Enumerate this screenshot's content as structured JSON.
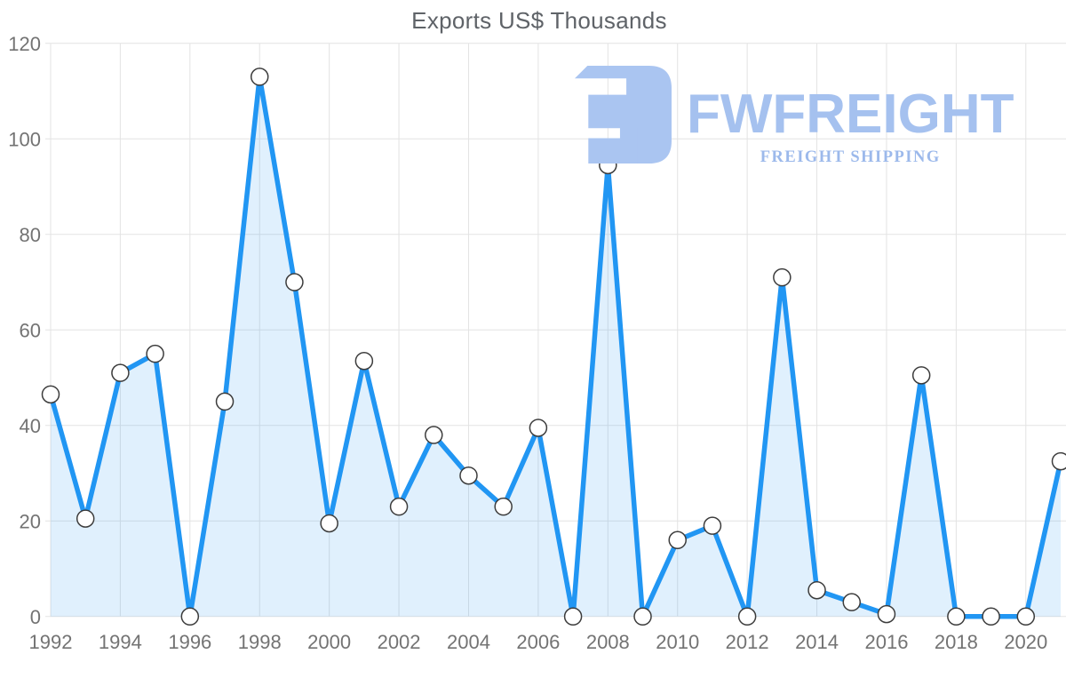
{
  "title": "Exports US$ Thousands",
  "logo": {
    "name": "FWFREIGHT",
    "tagline": "FREIGHT SHIPPING",
    "mark_color": "#aac5f1",
    "name_color": "#a5c1ef",
    "tagline_color": "#9cb9eb"
  },
  "chart_data": {
    "type": "area",
    "title": "Exports US$ Thousands",
    "x": [
      1992,
      1993,
      1994,
      1995,
      1996,
      1997,
      1998,
      1999,
      2000,
      2001,
      2002,
      2003,
      2004,
      2005,
      2006,
      2007,
      2008,
      2009,
      2010,
      2011,
      2012,
      2013,
      2014,
      2015,
      2016,
      2017,
      2018,
      2019,
      2020,
      2021
    ],
    "values": [
      46.5,
      20.5,
      51,
      55,
      0,
      45,
      113,
      70,
      19.5,
      53.5,
      23,
      38,
      29.5,
      23,
      39.5,
      0,
      94.5,
      0,
      16,
      19,
      0,
      71,
      5.5,
      3,
      0.5,
      50.5,
      0,
      0,
      0,
      32.5
    ],
    "xlabel": "",
    "ylabel": "",
    "ylim": [
      0,
      120
    ],
    "ytick_step": 20,
    "ytick_labels": [
      "0",
      "20",
      "40",
      "60",
      "80",
      "100",
      "120"
    ],
    "xtick_labels": [
      "1992",
      "1994",
      "1996",
      "1998",
      "2000",
      "2002",
      "2004",
      "2006",
      "2008",
      "2010",
      "2012",
      "2014",
      "2016",
      "2018",
      "2020"
    ],
    "xtick_interval": 2,
    "grid": true,
    "legend": "none",
    "line_color": "#2196f3",
    "fill_color": "rgba(33,150,243,0.14)",
    "marker_fill": "#ffffff",
    "marker_stroke": "#3c3c3c",
    "grid_color": "#e3e3e3",
    "axis_text_color": "#737373",
    "title_color": "#5f6368"
  }
}
